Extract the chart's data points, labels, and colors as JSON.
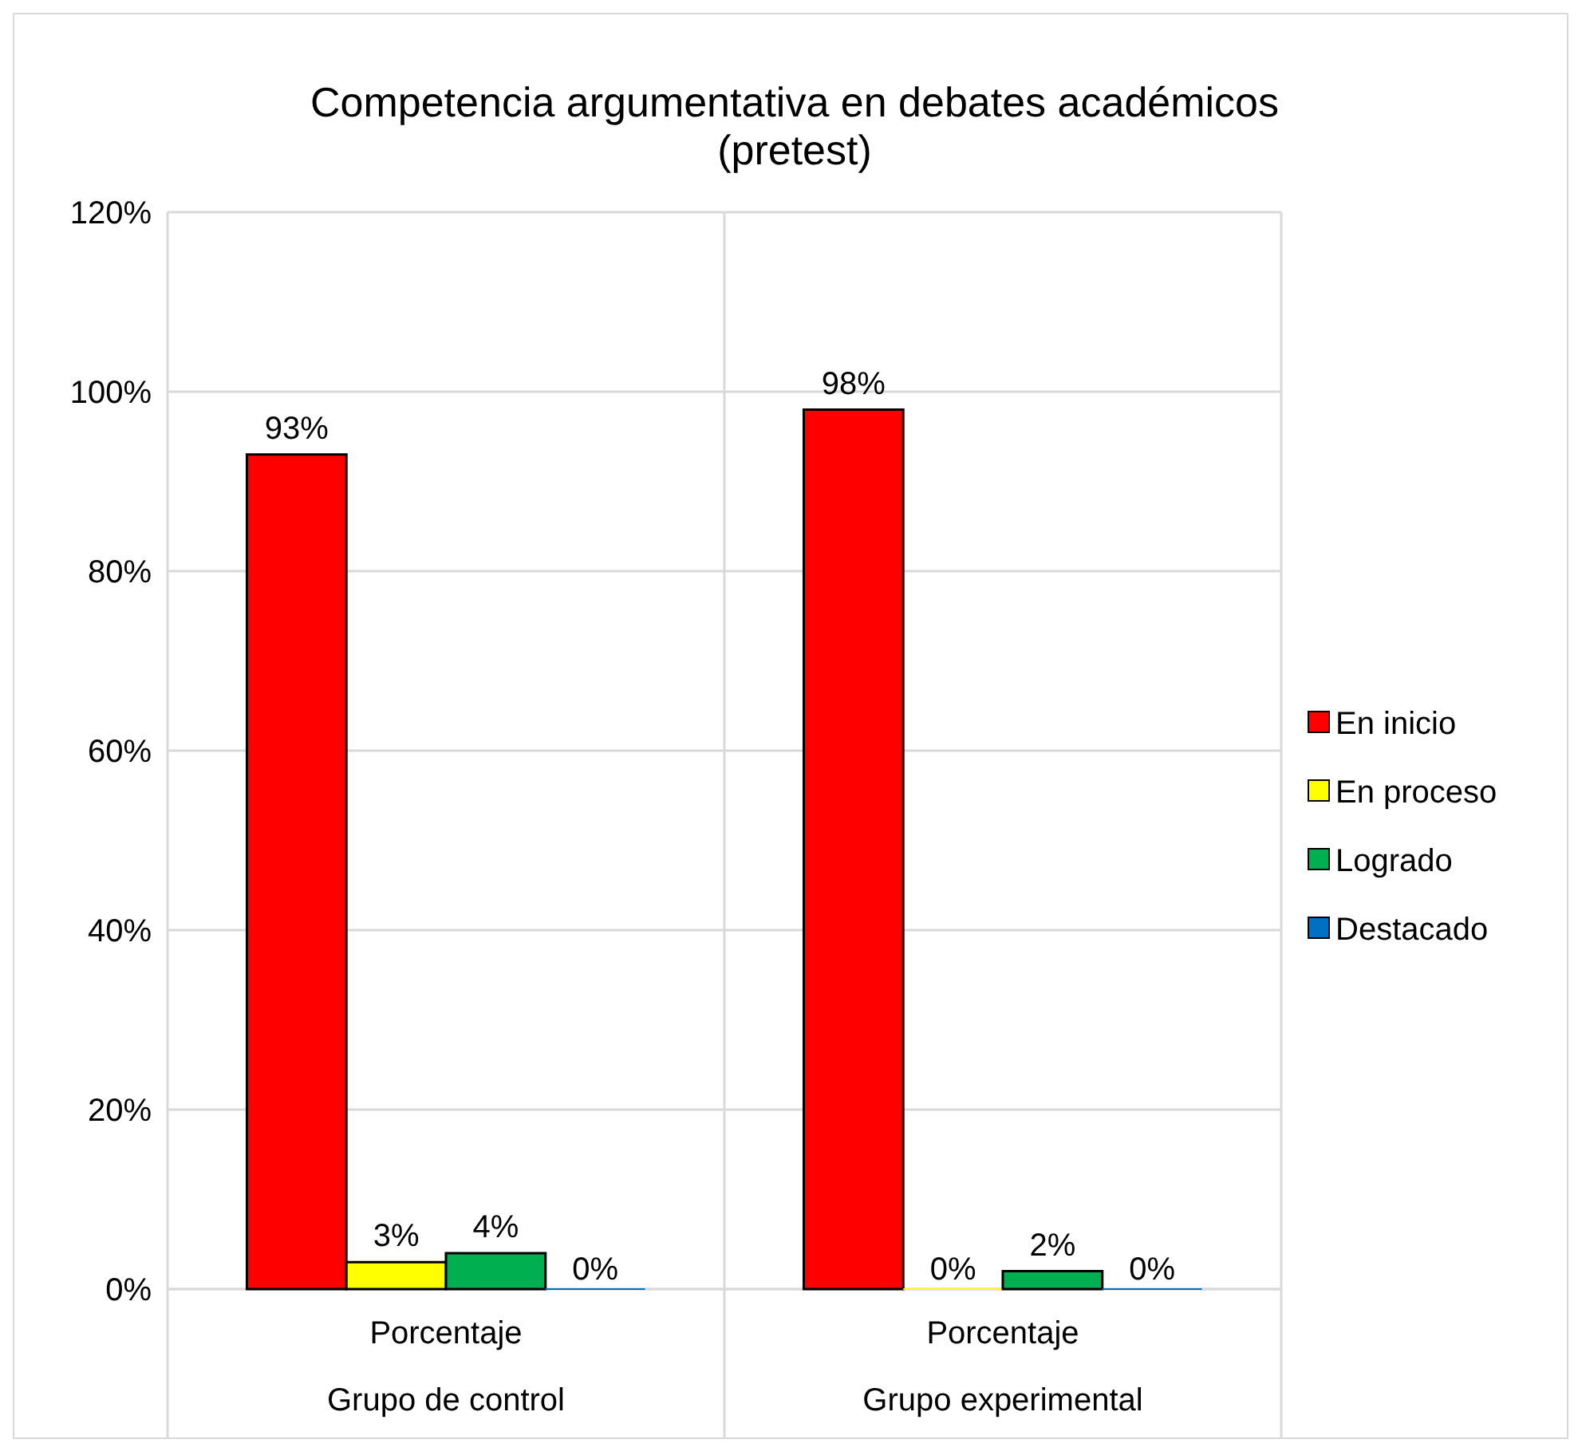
{
  "chart_data": {
    "type": "bar",
    "title": "Competencia argumentativa en debates académicos\n(pretest)",
    "categories": [
      "Porcentaje\nGrupo de control",
      "Porcentaje\nGrupo experimental"
    ],
    "series": [
      {
        "name": "En inicio",
        "color": "#ff0000",
        "values": [
          93,
          98
        ],
        "value_labels": [
          "93%",
          "98%"
        ]
      },
      {
        "name": "En proceso",
        "color": "#ffff00",
        "values": [
          3,
          0
        ],
        "value_labels": [
          "3%",
          "0%"
        ]
      },
      {
        "name": "Logrado",
        "color": "#00b050",
        "values": [
          4,
          2
        ],
        "value_labels": [
          "4%",
          "2%"
        ]
      },
      {
        "name": "Destacado",
        "color": "#0070c0",
        "values": [
          0,
          0
        ],
        "value_labels": [
          "0%",
          "0%"
        ]
      }
    ],
    "ylim": [
      0,
      120
    ],
    "yticks": [
      {
        "value": 0,
        "label": "0%"
      },
      {
        "value": 20,
        "label": "20%"
      },
      {
        "value": 40,
        "label": "40%"
      },
      {
        "value": 60,
        "label": "60%"
      },
      {
        "value": 80,
        "label": "80%"
      },
      {
        "value": 100,
        "label": "100%"
      },
      {
        "value": 120,
        "label": "120%"
      }
    ],
    "grid": "y",
    "legend": "right"
  }
}
